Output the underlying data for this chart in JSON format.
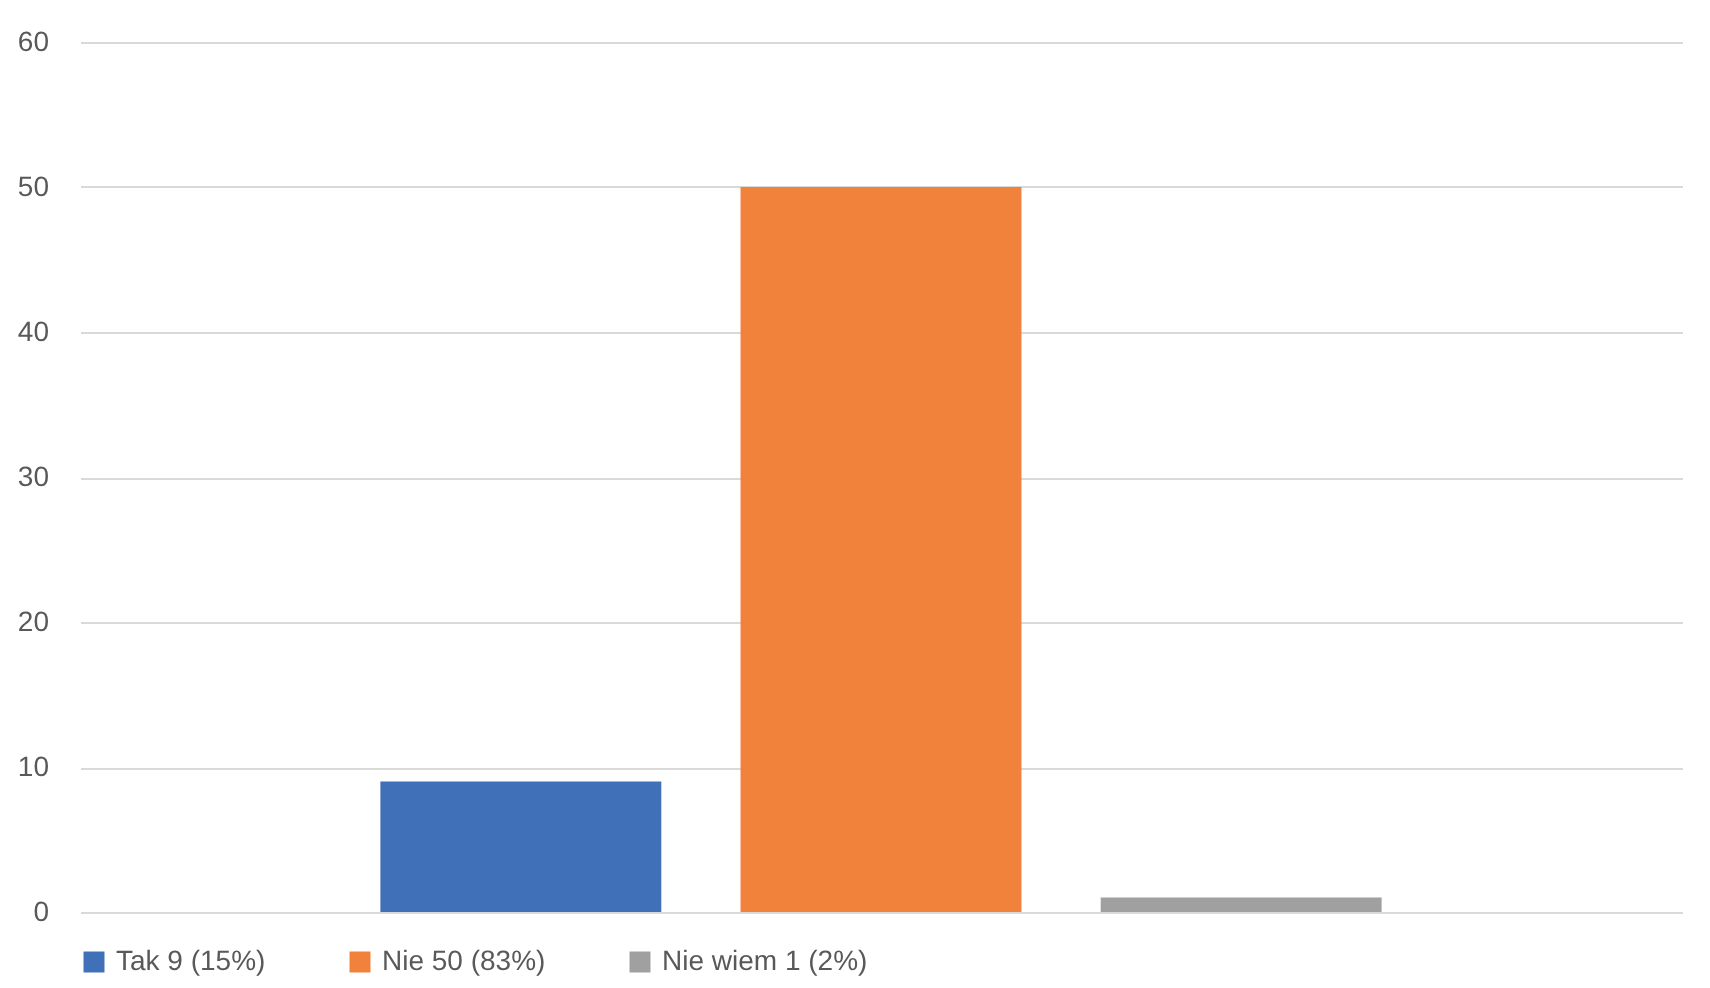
{
  "chart_data": {
    "type": "bar",
    "categories": [
      null
    ],
    "series": [
      {
        "name": "Tak 9 (15%)",
        "color": "#4070b8",
        "values": [
          9
        ]
      },
      {
        "name": "Nie 50 (83%)",
        "color": "#f0823c",
        "values": [
          50
        ]
      },
      {
        "name": "Nie wiem 1 (2%)",
        "color": "#a0a0a0",
        "values": [
          1
        ]
      }
    ],
    "ylim": [
      0,
      60
    ],
    "yticks": [
      0,
      10,
      20,
      30,
      40,
      50,
      60
    ],
    "grid": "y",
    "legend": "bottom",
    "tick_labels": "y"
  }
}
